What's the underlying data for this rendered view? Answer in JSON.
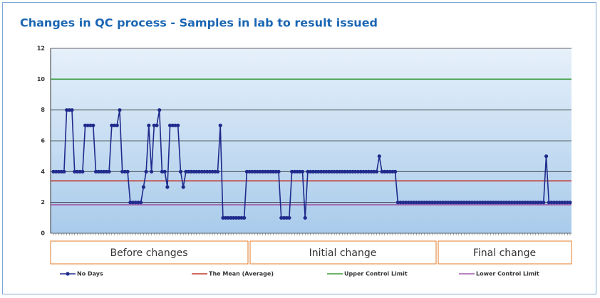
{
  "chart_data": {
    "type": "line",
    "title": "Changes in QC process - Samples in lab to result issued",
    "series": [
      {
        "name": "No Days",
        "color": "#1f2a8c",
        "values": [
          4,
          4,
          4,
          4,
          4,
          8,
          8,
          8,
          4,
          4,
          4,
          4,
          7,
          7,
          7,
          7,
          4,
          4,
          4,
          4,
          4,
          4,
          7,
          7,
          7,
          8,
          4,
          4,
          4,
          2,
          2,
          2,
          2,
          2,
          3,
          4,
          7,
          4,
          7,
          7,
          8,
          4,
          4,
          3,
          7,
          7,
          7,
          7,
          4,
          3,
          4,
          4,
          4,
          4,
          4,
          4,
          4,
          4,
          4,
          4,
          4,
          4,
          4,
          7,
          1,
          1,
          1,
          1,
          1,
          1,
          1,
          1,
          1,
          4,
          4,
          4,
          4,
          4,
          4,
          4,
          4,
          4,
          4,
          4,
          4,
          4,
          1,
          1,
          1,
          1,
          4,
          4,
          4,
          4,
          4,
          1,
          4,
          4,
          4,
          4,
          4,
          4,
          4,
          4,
          4,
          4,
          4,
          4,
          4,
          4,
          4,
          4,
          4,
          4,
          4,
          4,
          4,
          4,
          4,
          4,
          4,
          4,
          4,
          5,
          4,
          4,
          4,
          4,
          4,
          4,
          2,
          2,
          2,
          2,
          2,
          2,
          2,
          2,
          2,
          2,
          2,
          2,
          2,
          2,
          2,
          2,
          2,
          2,
          2,
          2,
          2,
          2,
          2,
          2,
          2,
          2,
          2,
          2,
          2,
          2,
          2,
          2,
          2,
          2,
          2,
          2,
          2,
          2,
          2,
          2,
          2,
          2,
          2,
          2,
          2,
          2,
          2,
          2,
          2,
          2,
          2,
          2,
          2,
          2,
          2,
          2,
          5,
          2,
          2,
          2,
          2,
          2,
          2,
          2,
          2,
          2
        ]
      }
    ],
    "reference_lines": [
      {
        "name": "The Mean (Average)",
        "value": 3.4,
        "color": "#c0392b"
      },
      {
        "name": "Upper Control Limit",
        "value": 10,
        "color": "#3a9b3a"
      },
      {
        "name": "Lower Control Limit",
        "value": 1.85,
        "color": "#a05aa8"
      }
    ],
    "annotations": [
      "Before changes",
      "Initial change",
      "Final change"
    ],
    "ylim": [
      0,
      12
    ],
    "yticks": [
      0,
      2,
      4,
      6,
      8,
      10,
      12
    ],
    "grid": true
  }
}
